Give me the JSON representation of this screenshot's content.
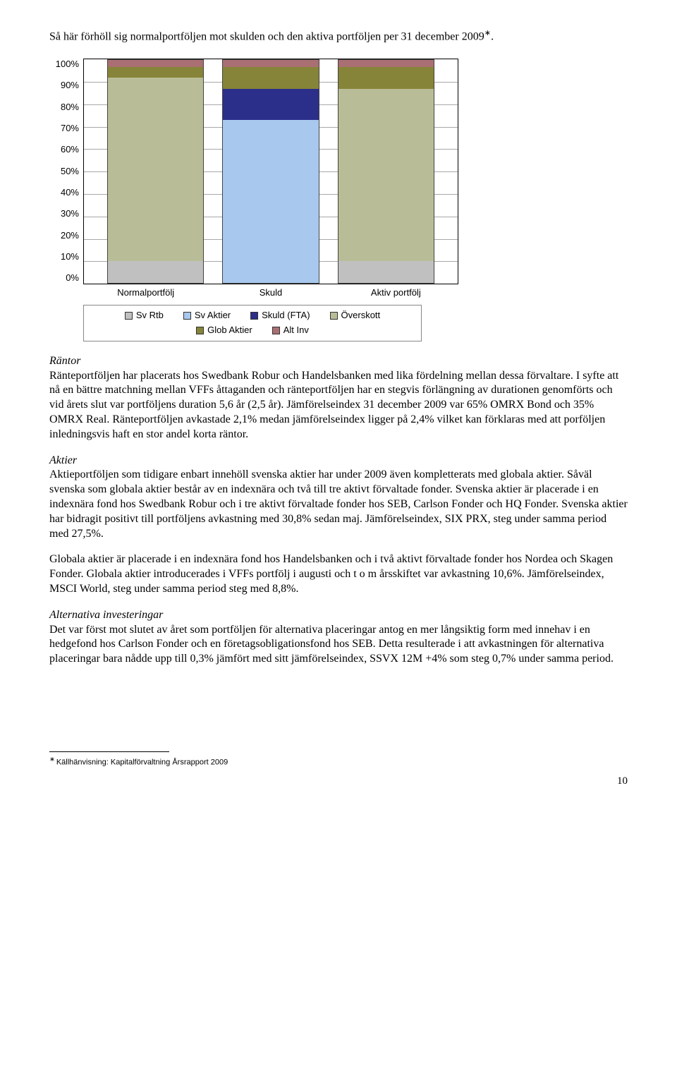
{
  "intro_text": "Så här förhöll sig normalportföljen mot skulden och den aktiva portföljen per 31 december 2009",
  "intro_sup": "∗",
  "intro_period": ".",
  "chart": {
    "type": "stacked-bar-100",
    "y_ticks": [
      "100%",
      "90%",
      "80%",
      "70%",
      "60%",
      "50%",
      "40%",
      "30%",
      "20%",
      "10%",
      "0%"
    ],
    "categories": [
      "Normalportfölj",
      "Skuld",
      "Aktiv portfölj"
    ],
    "series": [
      {
        "name": "Sv Rtb",
        "color": "#c0c0c0"
      },
      {
        "name": "Sv Aktier",
        "color": "#a8c8ee"
      },
      {
        "name": "Skuld (FTA)",
        "color": "#2b2f8a"
      },
      {
        "name": "Överskott",
        "color": "#b9bd97"
      },
      {
        "name": "Glob Aktier",
        "color": "#868438"
      },
      {
        "name": "Alt Inv",
        "color": "#aa6f72"
      }
    ],
    "bars": [
      {
        "Sv Rtb": 10,
        "Sv Aktier": 0,
        "Skuld (FTA)": 0,
        "Överskott": 82,
        "Glob Aktier": 5,
        "Alt Inv": 3
      },
      {
        "Sv Rtb": 0,
        "Sv Aktier": 73,
        "Skuld (FTA)": 14,
        "Överskott": 0,
        "Glob Aktier": 10,
        "Alt Inv": 3
      },
      {
        "Sv Rtb": 10,
        "Sv Aktier": 0,
        "Skuld (FTA)": 0,
        "Överskott": 77,
        "Glob Aktier": 10,
        "Alt Inv": 3
      }
    ],
    "ylim": [
      0,
      100
    ],
    "ytick_step": 10,
    "background_color": "#ffffff",
    "grid_color": "#a8a8a8",
    "tick_fontsize": 13,
    "label_font": "Arial"
  },
  "rantor_head": "Räntor",
  "rantor_body": "Ränteportföljen har placerats hos Swedbank Robur och Handelsbanken med lika fördelning mellan dessa förvaltare. I syfte att nå en bättre matchning mellan VFFs åttaganden och ränteportföljen har en stegvis förlängning av durationen genomförts och vid årets slut var portföljens duration 5,6 år (2,5 år). Jämförelseindex 31 december 2009 var  65% OMRX Bond och 35% OMRX Real. Ränteportföljen avkastade 2,1% medan jämförelseindex ligger på 2,4% vilket kan förklaras med att porföljen inledningsvis haft en stor andel korta räntor.",
  "aktier_head": "Aktier",
  "aktier_p1": "Aktieportföljen som tidigare enbart innehöll svenska aktier har under 2009 även kompletterats med globala aktier. Såväl svenska som globala aktier består av en indexnära och två till tre aktivt förvaltade fonder. Svenska aktier är placerade i en indexnära fond hos Swedbank Robur och i tre aktivt förvaltade fonder hos SEB, Carlson Fonder och HQ Fonder. Svenska aktier har bidragit positivt till portföljens avkastning med 30,8% sedan maj. Jämförelseindex, SIX PRX, steg under samma period med 27,5%.",
  "aktier_p2": "Globala aktier är placerade i en indexnära fond hos Handelsbanken och i två aktivt förvaltade fonder hos Nordea och Skagen Fonder. Globala aktier introducerades i VFFs portfölj i augusti och t o m årsskiftet var avkastning 10,6%. Jämförelseindex, MSCI World, steg under samma period steg med 8,8%.",
  "alt_head": "Alternativa investeringar",
  "alt_body": "Det var först mot slutet av året som portföljen för alternativa placeringar antog en mer långsiktig form med innehav i en hedgefond hos Carlson Fonder och en företagsobligationsfond hos SEB. Detta resulterade i att avkastningen för alternativa placeringar bara nådde upp till 0,3% jämfört med sitt jämförelseindex, SSVX 12M +4% som steg 0,7% under samma period.",
  "footnote_marker": "∗",
  "footnote_text": "Källhänvisning: Kapitalförvaltning Årsrapport 2009",
  "page_number": "10"
}
